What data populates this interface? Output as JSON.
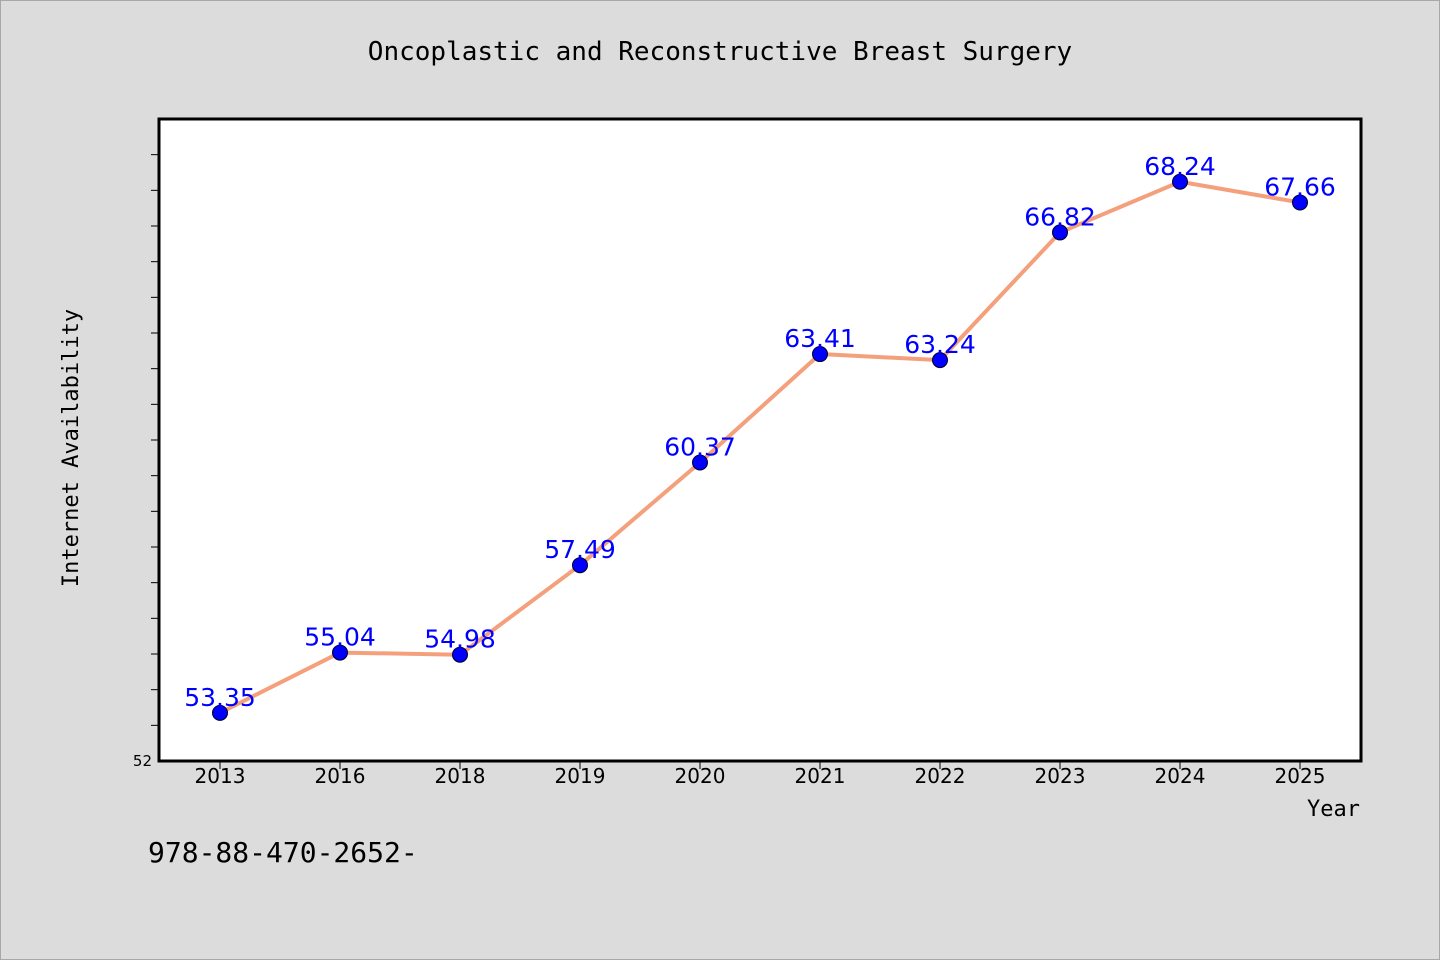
{
  "chart_data": {
    "type": "line",
    "title": "Oncoplastic and Reconstructive Breast Surgery",
    "xlabel": "Year",
    "ylabel": "Internet Availability",
    "categories": [
      "2013",
      "2016",
      "2018",
      "2019",
      "2020",
      "2021",
      "2022",
      "2023",
      "2024",
      "2025"
    ],
    "series": [
      {
        "values": [
          53.35,
          55.04,
          54.98,
          57.49,
          60.37,
          63.41,
          63.24,
          66.82,
          68.24,
          67.66
        ],
        "labels": [
          "53.35",
          "55.04",
          "54.98",
          "57.49",
          "60.37",
          "63.41",
          "63.24",
          "66.82",
          "68.24",
          "67.66"
        ]
      }
    ],
    "y_tick_label": "52",
    "ylim": [
      52,
      70
    ],
    "grid": false,
    "line_color": "#f4a07c",
    "marker_color": "#0000ff",
    "label_color": "#0000ff"
  },
  "footer_text": "978-88-470-2652-"
}
